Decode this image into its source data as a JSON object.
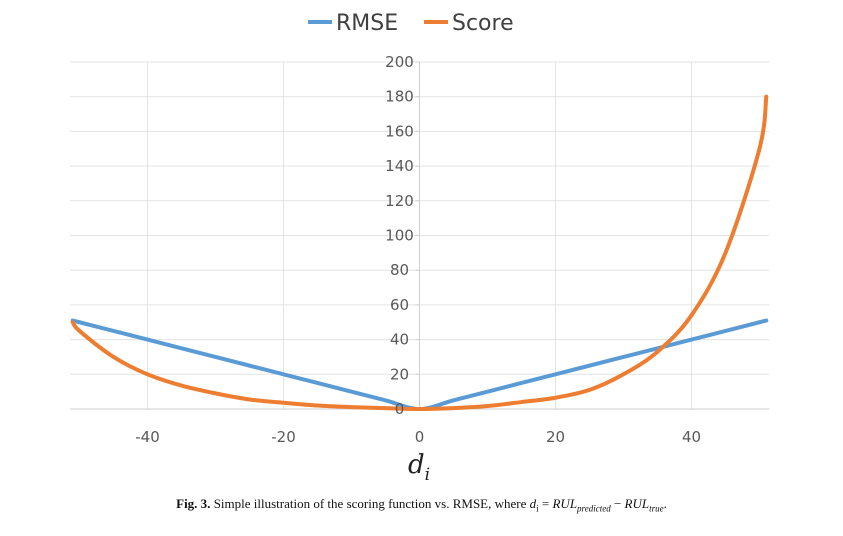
{
  "chart_data": {
    "type": "line",
    "title": "",
    "xlabel": "d",
    "xlabel_sub": "i",
    "ylabel": "",
    "xlim": [
      -51.4,
      51.4
    ],
    "ylim": [
      0,
      200
    ],
    "x_ticks": [
      "-40",
      "-20",
      "0",
      "20",
      "40"
    ],
    "x_tick_values": [
      -40,
      -20,
      0,
      20,
      40
    ],
    "y_ticks": [
      "0",
      "20",
      "40",
      "60",
      "80",
      "100",
      "120",
      "140",
      "160",
      "180",
      "200"
    ],
    "y_tick_values": [
      0,
      20,
      40,
      60,
      80,
      100,
      120,
      140,
      160,
      180,
      200
    ],
    "grid": true,
    "legend_position": "top",
    "series": [
      {
        "name": "RMSE",
        "color": "#5B9BD5",
        "x": [
          -51,
          -50,
          -45,
          -40,
          -35,
          -30,
          -25,
          -20,
          -15,
          -10,
          -5,
          0,
          5,
          10,
          15,
          20,
          25,
          30,
          35,
          40,
          45,
          50,
          51
        ],
        "y": [
          51,
          50,
          45,
          40,
          35,
          30,
          25,
          20,
          15,
          10,
          5,
          0,
          5,
          10,
          15,
          20,
          25,
          30,
          35,
          40,
          45,
          50,
          51
        ]
      },
      {
        "name": "Score",
        "color": "#ED7D31",
        "x": [
          -51,
          -50,
          -45,
          -40,
          -35,
          -30,
          -25,
          -20,
          -15,
          -10,
          -5,
          0,
          5,
          10,
          15,
          20,
          25,
          30,
          35,
          40,
          45,
          50,
          51
        ],
        "y": [
          50,
          45,
          30,
          20,
          13.5,
          9,
          5.5,
          3.6,
          2,
          1.1,
          0.5,
          0,
          0.5,
          1.7,
          4,
          6.5,
          11,
          20,
          33,
          54,
          90,
          150,
          180
        ]
      }
    ]
  },
  "caption": {
    "label": "Fig. 3.",
    "text": "Simple illustration of the scoring function vs. RMSE, where",
    "formula_var": "d",
    "formula_var_sub": "i",
    "formula_eq": " = ",
    "formula_term1": "RUL",
    "formula_term1_sub": "predicted",
    "formula_minus": " − ",
    "formula_term2": "RUL",
    "formula_term2_sub": "true",
    "end": "."
  }
}
